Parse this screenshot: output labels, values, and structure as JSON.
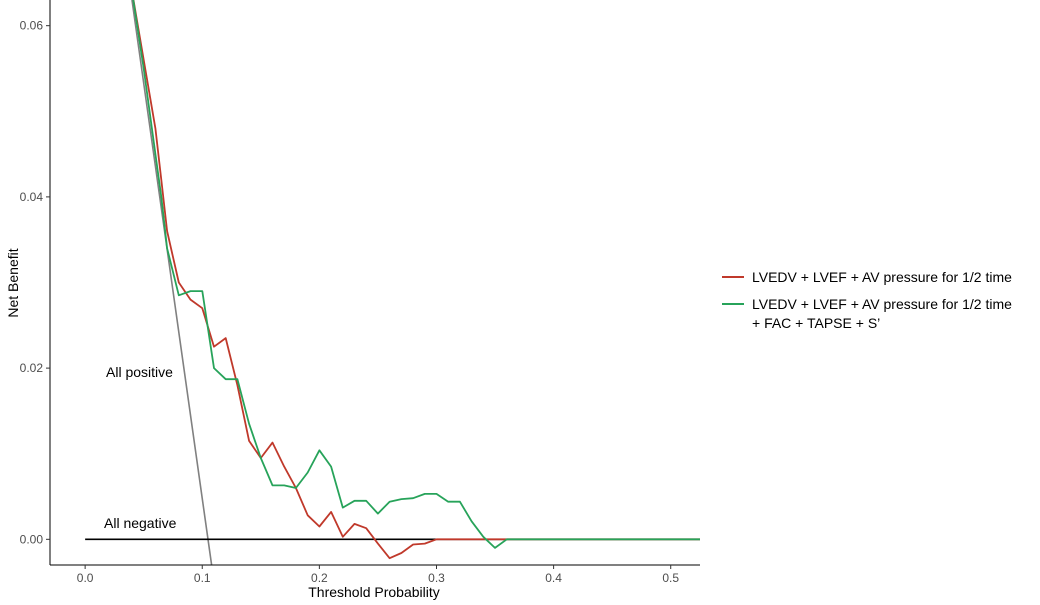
{
  "chart_data": {
    "type": "line",
    "xlabel": "Threshold Probability",
    "ylabel": "Net Benefit",
    "xlim": [
      -0.03,
      0.525
    ],
    "ylim": [
      -0.003,
      0.063
    ],
    "x_ticks": [
      0.0,
      0.1,
      0.2,
      0.3,
      0.4,
      0.5
    ],
    "x_tick_labels": [
      "0.0",
      "0.1",
      "0.2",
      "0.3",
      "0.4",
      "0.5"
    ],
    "y_ticks": [
      0.0,
      0.02,
      0.04,
      0.06
    ],
    "y_tick_labels": [
      "0.00",
      "0.02",
      "0.04",
      "0.06"
    ],
    "grid": false,
    "legend_position": "right",
    "annotations": {
      "all_positive": "All positive",
      "all_negative": "All negative"
    },
    "reference_lines": {
      "all_positive": {
        "color": "#808080",
        "x": [
          0.04,
          0.108
        ],
        "y": [
          0.063,
          -0.003
        ]
      },
      "all_negative": {
        "color": "#000000",
        "x": [
          0.0,
          0.525
        ],
        "y": [
          0.0,
          0.0
        ]
      }
    },
    "series": [
      {
        "name": "LVEDV + LVEF + AV pressure for 1/2 time",
        "legend_lines": [
          "LVEDV + LVEF + AV pressure for 1/2 time"
        ],
        "color": "#c0392b",
        "x": [
          0.04,
          0.05,
          0.06,
          0.065,
          0.07,
          0.08,
          0.09,
          0.1,
          0.11,
          0.12,
          0.13,
          0.14,
          0.15,
          0.16,
          0.17,
          0.18,
          0.19,
          0.2,
          0.21,
          0.22,
          0.23,
          0.24,
          0.25,
          0.26,
          0.27,
          0.28,
          0.29,
          0.3,
          0.31,
          0.32,
          0.33,
          0.34,
          0.35,
          0.36,
          0.525
        ],
        "y": [
          0.064,
          0.056,
          0.048,
          0.042,
          0.036,
          0.03,
          0.028,
          0.027,
          0.0225,
          0.0235,
          0.018,
          0.0115,
          0.0095,
          0.0113,
          0.0085,
          0.006,
          0.0028,
          0.0015,
          0.0032,
          0.0003,
          0.0018,
          0.0013,
          -0.0005,
          -0.0022,
          -0.0016,
          -0.0006,
          -0.0005,
          0.0,
          0.0,
          0.0,
          0.0,
          0.0,
          0.0,
          0.0,
          0.0
        ]
      },
      {
        "name": "LVEDV + LVEF + AV pressure for 1/2 time + FAC + TAPSE + S’",
        "legend_lines": [
          "LVEDV + LVEF + AV pressure for 1/2 time",
          "+ FAC + TAPSE + S’"
        ],
        "color": "#27a35a",
        "x": [
          0.04,
          0.05,
          0.06,
          0.065,
          0.07,
          0.08,
          0.09,
          0.1,
          0.11,
          0.12,
          0.13,
          0.14,
          0.15,
          0.16,
          0.17,
          0.18,
          0.19,
          0.2,
          0.21,
          0.22,
          0.23,
          0.24,
          0.25,
          0.26,
          0.27,
          0.28,
          0.29,
          0.3,
          0.31,
          0.32,
          0.33,
          0.34,
          0.35,
          0.36,
          0.525
        ],
        "y": [
          0.064,
          0.055,
          0.045,
          0.04,
          0.034,
          0.0285,
          0.029,
          0.029,
          0.02,
          0.0187,
          0.0187,
          0.0135,
          0.0095,
          0.0063,
          0.0063,
          0.006,
          0.0078,
          0.0104,
          0.0085,
          0.0037,
          0.0045,
          0.0045,
          0.003,
          0.0044,
          0.0047,
          0.0048,
          0.0053,
          0.0053,
          0.0044,
          0.0044,
          0.0021,
          0.0003,
          -0.001,
          0.0,
          0.0
        ]
      }
    ]
  }
}
